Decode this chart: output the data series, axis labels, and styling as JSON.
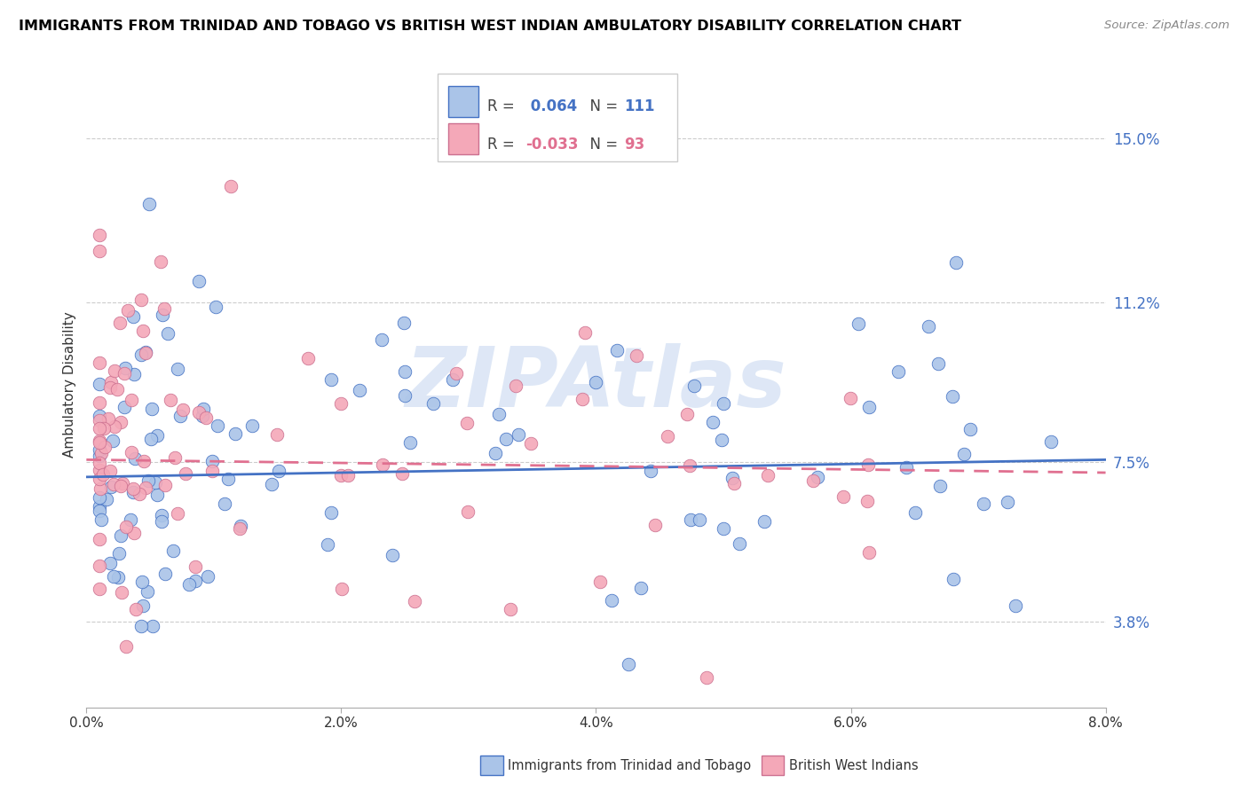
{
  "title": "IMMIGRANTS FROM TRINIDAD AND TOBAGO VS BRITISH WEST INDIAN AMBULATORY DISABILITY CORRELATION CHART",
  "source": "Source: ZipAtlas.com",
  "ylabel": "Ambulatory Disability",
  "ytick_labels": [
    "15.0%",
    "11.2%",
    "7.5%",
    "3.8%"
  ],
  "ytick_values": [
    0.15,
    0.112,
    0.075,
    0.038
  ],
  "xtick_values": [
    0.0,
    0.02,
    0.04,
    0.06,
    0.08
  ],
  "xtick_labels": [
    "0.0%",
    "2.0%",
    "4.0%",
    "6.0%",
    "8.0%"
  ],
  "xmin": 0.0,
  "xmax": 0.08,
  "ymin": 0.018,
  "ymax": 0.168,
  "r_blue": 0.064,
  "n_blue": 111,
  "r_pink": -0.033,
  "n_pink": 93,
  "blue_color": "#aac4e8",
  "pink_color": "#f4a8b8",
  "blue_line_color": "#4472c4",
  "pink_line_color": "#e07090",
  "legend_label_blue": "Immigrants from Trinidad and Tobago",
  "legend_label_pink": "British West Indians",
  "blue_trend_y0": 0.0715,
  "blue_trend_y1": 0.0755,
  "pink_trend_y0": 0.0755,
  "pink_trend_y1": 0.0725,
  "watermark": "ZIPAtlas",
  "watermark_color": "#c8d8f0"
}
